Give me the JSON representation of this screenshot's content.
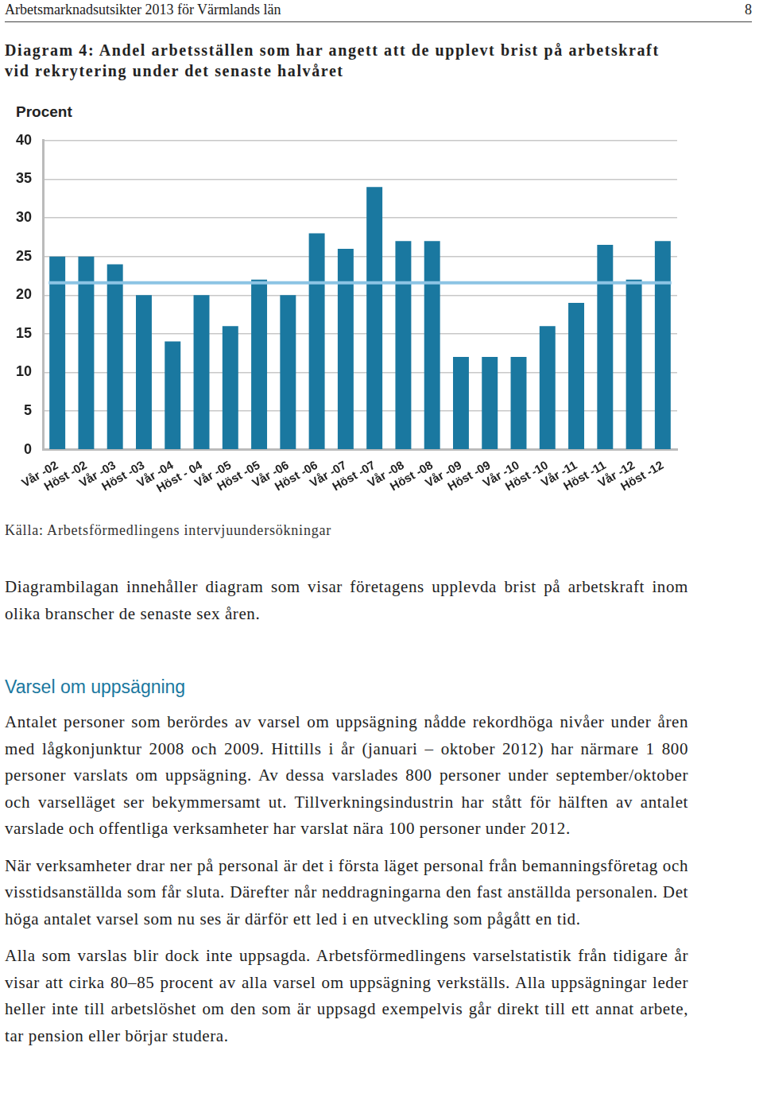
{
  "header": {
    "title": "Arbetsmarknadsutsikter 2013 för Värmlands län",
    "page": "8"
  },
  "chart_title": "Diagram 4: Andel arbetsställen som har angett att de upplevt brist på arbetskraft vid rekrytering under det senaste halvåret",
  "chart_data": {
    "type": "bar",
    "y_label": "Procent",
    "categories": [
      "Vår -02",
      "Höst -02",
      "Vår -03",
      "Höst -03",
      "Vår -04",
      "Höst - 04",
      "Vår -05",
      "Höst -05",
      "Vår -06",
      "Höst -06",
      "Vår -07",
      "Höst -07",
      "Vår -08",
      "Höst -08",
      "Vår -09",
      "Höst -09",
      "Vår -10",
      "Höst -10",
      "Vår -11",
      "Höst -11",
      "Vår -12",
      "Höst -12"
    ],
    "values": [
      25,
      25,
      24,
      20,
      14,
      20,
      16,
      22,
      20,
      28,
      26,
      34,
      27,
      27,
      12,
      12,
      12,
      16,
      19,
      26.5,
      22,
      27
    ],
    "color": "#1a78a0",
    "average": 21.6,
    "ylim": [
      0,
      40
    ],
    "yticks": [
      0,
      5,
      10,
      15,
      20,
      25,
      30,
      35,
      40
    ],
    "grid": true
  },
  "source": "Källa: Arbetsförmedlingens intervjuundersökningar",
  "intro": "Diagrambilagan innehåller diagram som visar företagens upplevda brist på arbetskraft inom olika branscher de senaste sex åren.",
  "section": {
    "heading": "Varsel om uppsägning",
    "paragraphs": [
      "Antalet personer som berördes av varsel om uppsägning nådde rekordhöga nivåer under åren med lågkonjunktur 2008 och 2009. Hittills i år (januari – oktober 2012) har närmare 1 800 personer varslats om uppsägning. Av dessa varslades 800 personer under september/oktober och varselläget ser bekymmersamt ut. Tillverkningsindustrin har stått för hälften av antalet varslade och offentliga verksamheter har varslat nära 100 personer under 2012.",
      "När verksamheter drar ner på personal är det i första läget personal från bemanningsföretag och visstidsanställda som får sluta. Därefter når neddragningarna den fast anställda personalen. Det höga antalet varsel som nu ses är därför ett led i en utveckling som pågått en tid.",
      "Alla som varslas blir dock inte uppsagda. Arbetsförmedlingens varselstatistik från tidigare år visar att cirka 80–85 procent av alla varsel om uppsägning verkställs. Alla uppsägningar leder heller inte till arbetslöshet om den som är uppsagd exempelvis går direkt till ett annat arbete, tar pension eller börjar studera."
    ]
  }
}
